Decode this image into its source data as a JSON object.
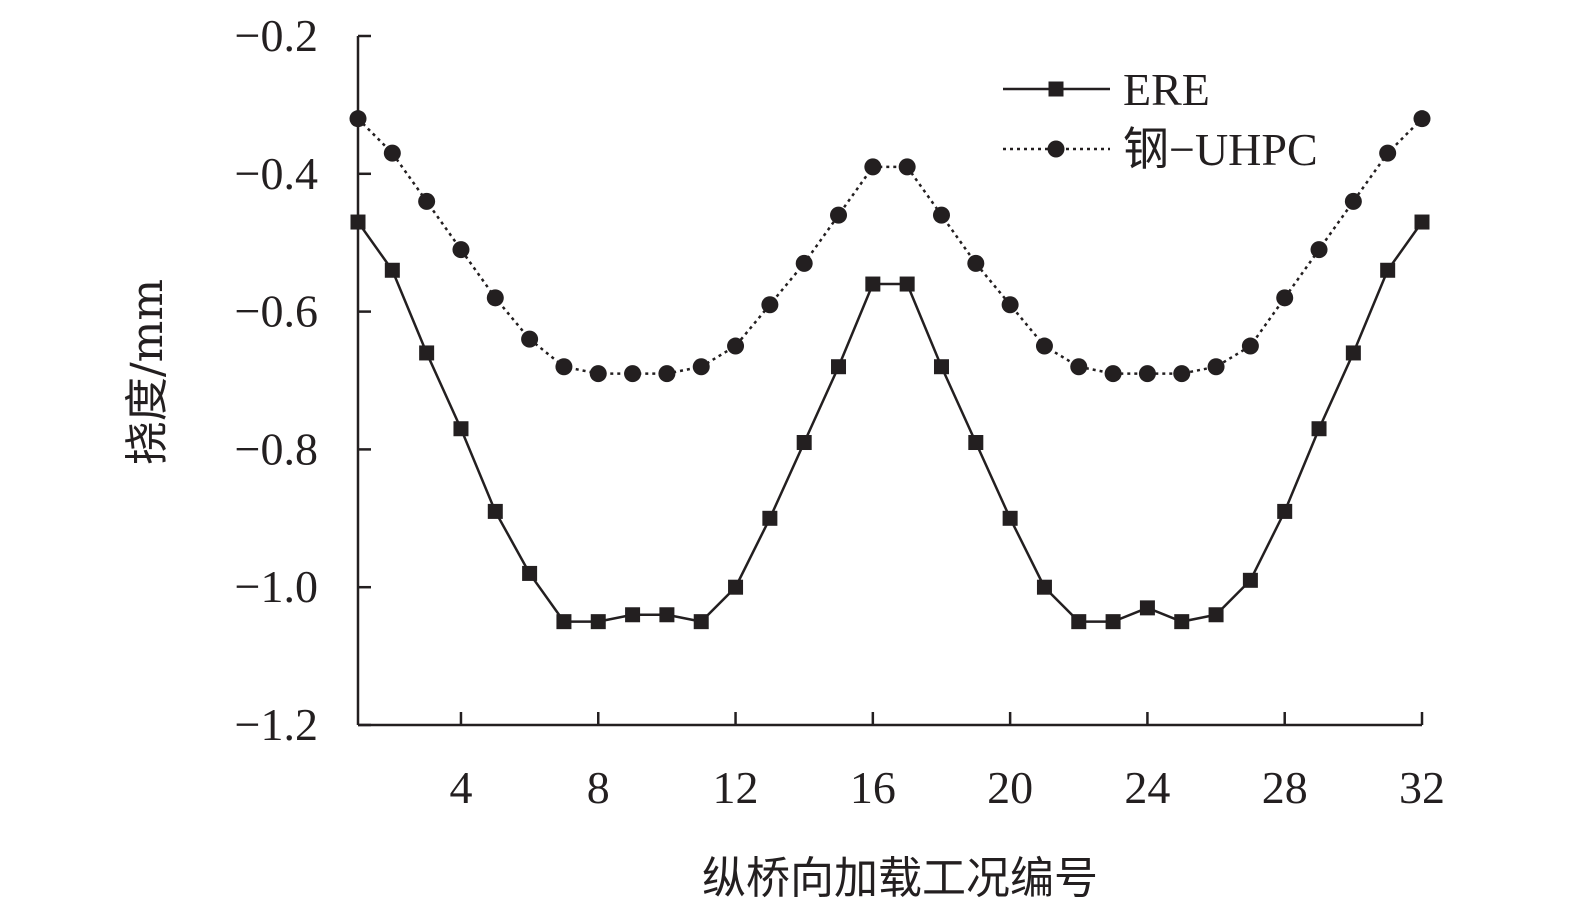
{
  "chart_data": {
    "type": "line",
    "title": "",
    "xlabel": "纵桥向加载工况编号",
    "ylabel": "挠度/mm",
    "xlim": [
      1,
      32
    ],
    "ylim": [
      -1.2,
      -0.2
    ],
    "x_ticks": [
      4,
      8,
      12,
      16,
      20,
      24,
      28,
      32
    ],
    "x_tick_labels": [
      "4",
      "8",
      "12",
      "16",
      "20",
      "24",
      "28",
      "32"
    ],
    "y_ticks": [
      -0.2,
      -0.4,
      -0.6,
      -0.8,
      -1.0,
      -1.2
    ],
    "y_tick_labels": [
      "−0.2",
      "−0.4",
      "−0.6",
      "−0.8",
      "−1.0",
      "−1.2"
    ],
    "grid": false,
    "legend_position": "top-right",
    "x": [
      1,
      2,
      3,
      4,
      5,
      6,
      7,
      8,
      9,
      10,
      11,
      12,
      13,
      14,
      15,
      16,
      17,
      18,
      19,
      20,
      21,
      22,
      23,
      24,
      25,
      26,
      27,
      28,
      29,
      30,
      31,
      32
    ],
    "series": [
      {
        "name": "ERE",
        "line_style": "solid",
        "marker": "square",
        "color": "#231f20",
        "values": [
          -0.47,
          -0.54,
          -0.66,
          -0.77,
          -0.89,
          -0.98,
          -1.05,
          -1.05,
          -1.04,
          -1.04,
          -1.05,
          -1.0,
          -0.9,
          -0.79,
          -0.68,
          -0.56,
          -0.56,
          -0.68,
          -0.79,
          -0.9,
          -1.0,
          -1.05,
          -1.05,
          -1.03,
          -1.05,
          -1.04,
          -0.99,
          -0.89,
          -0.77,
          -0.66,
          -0.54,
          -0.47
        ]
      },
      {
        "name": "钢−UHPC",
        "line_style": "dotted",
        "marker": "circle",
        "color": "#231f20",
        "values": [
          -0.32,
          -0.37,
          -0.44,
          -0.51,
          -0.58,
          -0.64,
          -0.68,
          -0.69,
          -0.69,
          -0.69,
          -0.68,
          -0.65,
          -0.59,
          -0.53,
          -0.46,
          -0.39,
          -0.39,
          -0.46,
          -0.53,
          -0.59,
          -0.65,
          -0.68,
          -0.69,
          -0.69,
          -0.69,
          -0.68,
          -0.65,
          -0.58,
          -0.51,
          -0.44,
          -0.37,
          -0.32
        ]
      }
    ]
  }
}
